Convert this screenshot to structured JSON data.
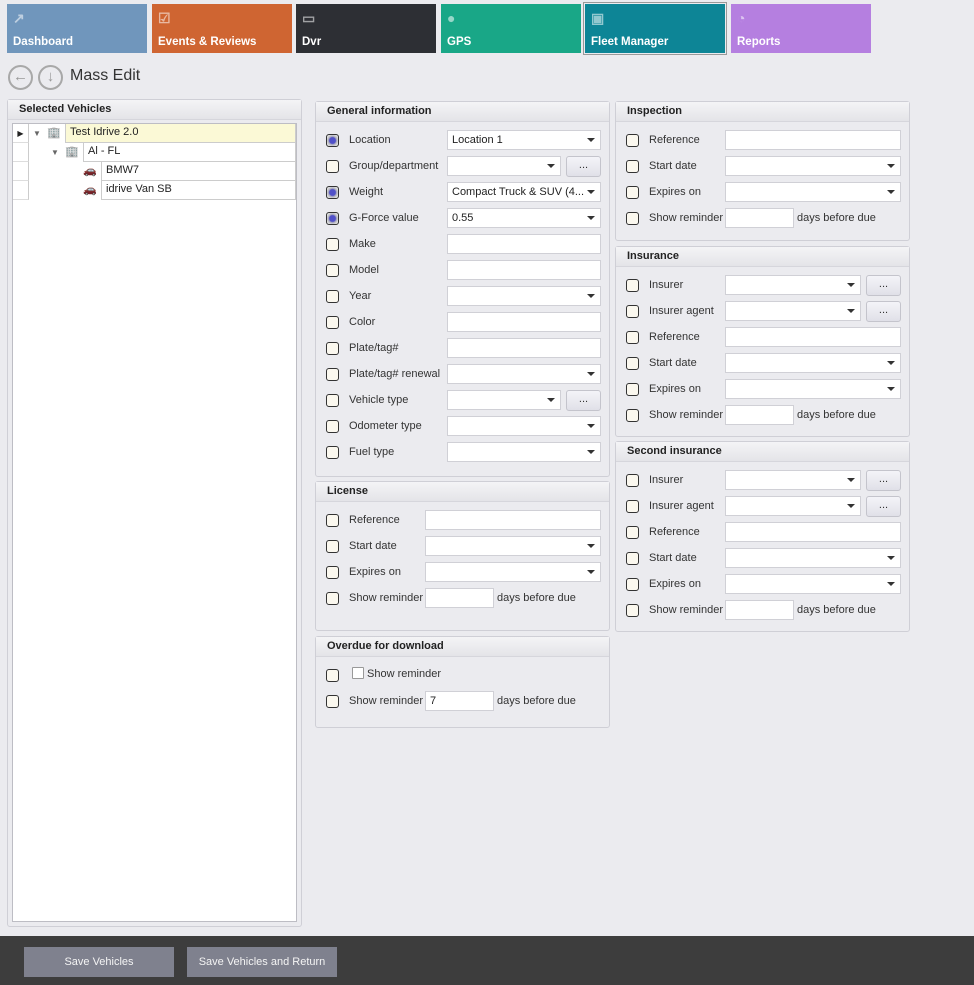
{
  "tabs": [
    {
      "label": "Dashboard",
      "icon": "chart-line-icon",
      "color": "#7096bc"
    },
    {
      "label": "Events & Reviews",
      "icon": "clipboard-check-icon",
      "color": "#cf6532"
    },
    {
      "label": "Dvr",
      "icon": "merge-logo-icon",
      "color": "#2d2f34"
    },
    {
      "label": "GPS",
      "icon": "map-pin-icon",
      "color": "#19a787"
    },
    {
      "label": "Fleet Manager",
      "icon": "cars-icon",
      "color": "#0d8596",
      "selected": true
    },
    {
      "label": "Reports",
      "icon": "pie-chart-icon",
      "color": "#b57fe0"
    }
  ],
  "page": {
    "title": "Mass Edit"
  },
  "vehicles": {
    "title": "Selected Vehicles",
    "nodes": [
      {
        "label": "Test Idrive 2.0",
        "level": 0,
        "icon": "building-icon"
      },
      {
        "label": "Al - FL",
        "level": 1,
        "icon": "building-arrow-icon"
      },
      {
        "label": "BMW7",
        "level": 2,
        "icon": "car-icon"
      },
      {
        "label": "idrive Van SB",
        "level": 2,
        "icon": "car-icon"
      }
    ]
  },
  "sections": {
    "general": {
      "title": "General information",
      "rows": [
        {
          "label": "Location",
          "type": "combo",
          "value": "Location 1",
          "checked": true
        },
        {
          "label": "Group/department",
          "type": "combo-btn",
          "value": ""
        },
        {
          "label": "Weight",
          "type": "combo",
          "value": "Compact Truck & SUV (4...",
          "checked": true
        },
        {
          "label": "G-Force value",
          "type": "combo",
          "value": "0.55",
          "checked": true
        },
        {
          "label": "Make",
          "type": "text",
          "value": ""
        },
        {
          "label": "Model",
          "type": "text",
          "value": ""
        },
        {
          "label": "Year",
          "type": "combo",
          "value": ""
        },
        {
          "label": "Color",
          "type": "text",
          "value": ""
        },
        {
          "label": "Plate/tag#",
          "type": "text",
          "value": ""
        },
        {
          "label": "Plate/tag# renewal",
          "type": "combo",
          "value": ""
        },
        {
          "label": "Vehicle type",
          "type": "combo-btn",
          "value": ""
        },
        {
          "label": "Odometer type",
          "type": "combo",
          "value": ""
        },
        {
          "label": "Fuel type",
          "type": "combo",
          "value": ""
        }
      ]
    },
    "license": {
      "title": "License",
      "rows": [
        {
          "label": "Reference",
          "type": "text",
          "value": ""
        },
        {
          "label": "Start date",
          "type": "combo",
          "value": ""
        },
        {
          "label": "Expires on",
          "type": "combo",
          "value": ""
        },
        {
          "label": "Show reminder",
          "type": "reminder",
          "value": ""
        }
      ]
    },
    "overdue": {
      "title": "Overdue for download",
      "rows": [
        {
          "label": "Show reminder",
          "type": "inner-check",
          "value": ""
        },
        {
          "label": "Show reminder",
          "type": "reminder",
          "value": "7"
        }
      ]
    },
    "inspection": {
      "title": "Inspection",
      "rows": [
        {
          "label": "Reference",
          "type": "text",
          "value": ""
        },
        {
          "label": "Start date",
          "type": "combo",
          "value": ""
        },
        {
          "label": "Expires on",
          "type": "combo",
          "value": ""
        },
        {
          "label": "Show reminder",
          "type": "reminder",
          "value": ""
        }
      ]
    },
    "insurance": {
      "title": "Insurance",
      "rows": [
        {
          "label": "Insurer",
          "type": "combo-btn",
          "value": ""
        },
        {
          "label": "Insurer agent",
          "type": "combo-btn",
          "value": ""
        },
        {
          "label": "Reference",
          "type": "text",
          "value": ""
        },
        {
          "label": "Start date",
          "type": "combo",
          "value": ""
        },
        {
          "label": "Expires on",
          "type": "combo",
          "value": ""
        },
        {
          "label": "Show reminder",
          "type": "reminder",
          "value": ""
        }
      ]
    },
    "second_insurance": {
      "title": "Second insurance",
      "rows": [
        {
          "label": "Insurer",
          "type": "combo-btn",
          "value": ""
        },
        {
          "label": "Insurer agent",
          "type": "combo-btn",
          "value": ""
        },
        {
          "label": "Reference",
          "type": "text",
          "value": ""
        },
        {
          "label": "Start date",
          "type": "combo",
          "value": ""
        },
        {
          "label": "Expires on",
          "type": "combo",
          "value": ""
        },
        {
          "label": "Show reminder",
          "type": "reminder",
          "value": ""
        }
      ]
    }
  },
  "labels": {
    "ellipsis": "...",
    "days_before_due": "days before due"
  },
  "footer": {
    "save": "Save Vehicles",
    "save_return": "Save Vehicles and Return"
  }
}
